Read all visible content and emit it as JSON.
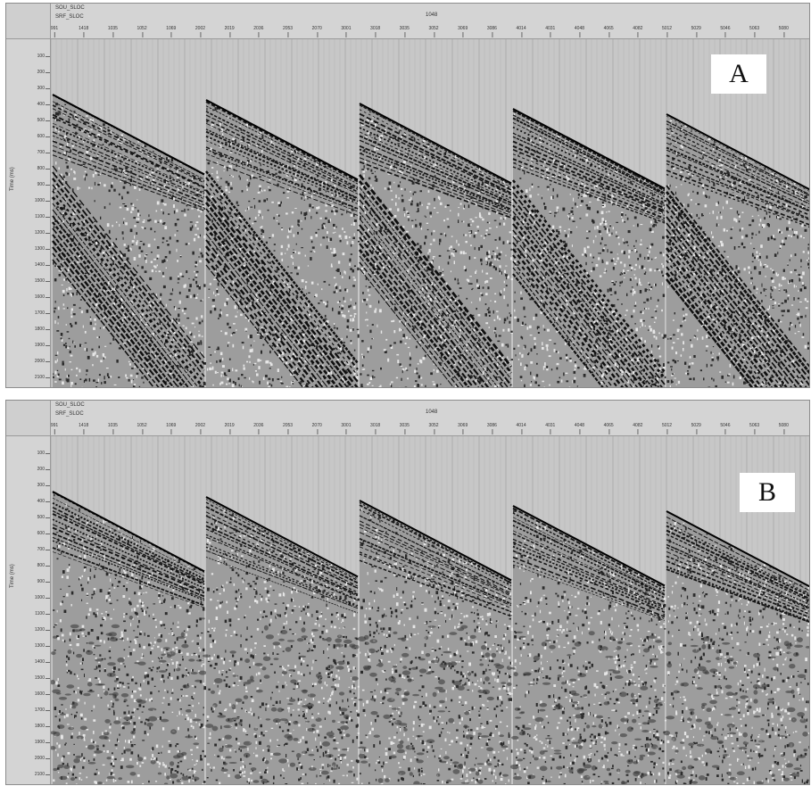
{
  "header": {
    "row1_label": "SOU_SLOC",
    "row2_label": "SRF_SLOC",
    "center_value": "1048",
    "ticks": [
      "991",
      "1418",
      "1035",
      "1052",
      "1069",
      "2002",
      "2019",
      "2036",
      "2053",
      "2070",
      "3001",
      "3018",
      "3035",
      "3052",
      "3069",
      "3086",
      "4014",
      "4031",
      "4048",
      "4065",
      "4082",
      "5012",
      "5029",
      "5046",
      "5063",
      "5080"
    ]
  },
  "axis": {
    "ylabel": "Time (ms)",
    "ticks": [
      "100",
      "200",
      "300",
      "400",
      "500",
      "600",
      "700",
      "800",
      "900",
      "1000",
      "1100",
      "1200",
      "1300",
      "1400",
      "1500",
      "1600",
      "1700",
      "1800",
      "1900",
      "2000",
      "2100"
    ]
  },
  "panels": [
    {
      "id": "panel-a",
      "tag": "A",
      "noise_level": 0.35,
      "linear_noise": true
    },
    {
      "id": "panel-b",
      "tag": "B",
      "noise_level": 0.35,
      "linear_noise": false
    }
  ],
  "colors": {
    "background": "#c7c7c7",
    "wiggle": "#1a1a1a",
    "frame": "#8c8c8c"
  }
}
